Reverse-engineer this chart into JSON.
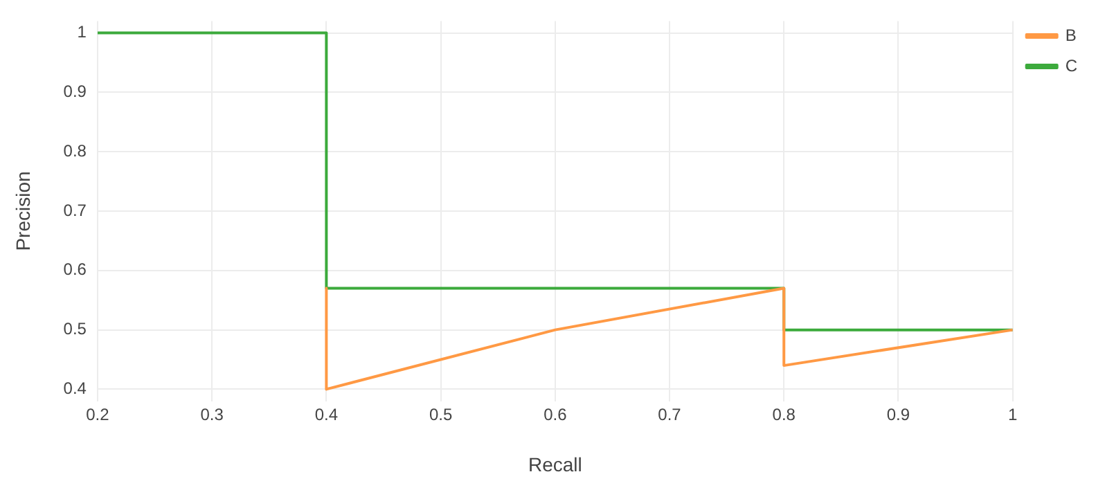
{
  "chart_data": {
    "type": "line",
    "xlabel": "Recall",
    "ylabel": "Precision",
    "xlim": [
      0.2,
      1
    ],
    "xticks": [
      0.2,
      0.3,
      0.4,
      0.5,
      0.6,
      0.7,
      0.8,
      0.9,
      1
    ],
    "ylim": [
      0.38,
      1.02
    ],
    "yticks": [
      0.4,
      0.5,
      0.6,
      0.7,
      0.8,
      0.9,
      1
    ],
    "grid": true,
    "legend": "top right",
    "marker": "none",
    "line_style": "solid",
    "series": [
      {
        "name": "B",
        "color": "#ff9944",
        "x": [
          0.4,
          0.4,
          0.6,
          0.8,
          0.8,
          1
        ],
        "values": [
          0.57,
          0.4,
          0.5,
          0.57,
          0.44,
          0.5
        ]
      },
      {
        "name": "C",
        "color": "#3caa3c",
        "x": [
          0.2,
          0.4,
          0.4,
          0.8,
          0.8,
          1
        ],
        "values": [
          1,
          1,
          0.57,
          0.57,
          0.5,
          0.5
        ]
      }
    ]
  }
}
